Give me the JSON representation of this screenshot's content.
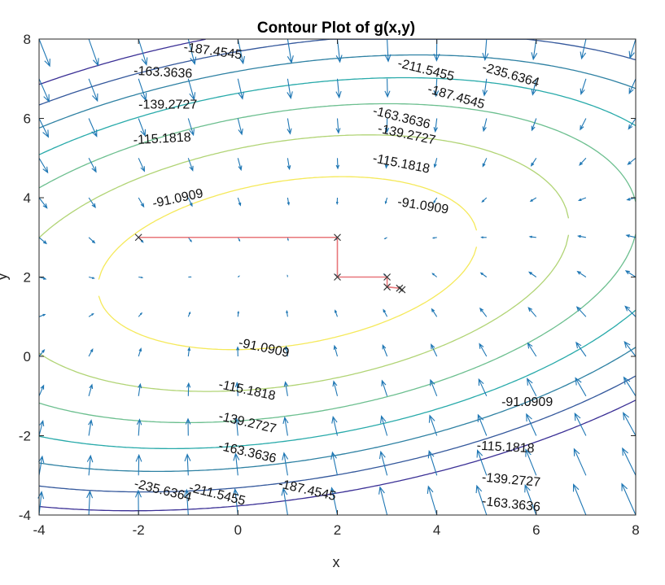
{
  "chart_data": {
    "type": "contour",
    "title": "Contour Plot of g(x,y)",
    "xlabel": "x",
    "ylabel": "y",
    "xlim": [
      -4,
      8
    ],
    "ylim": [
      -4,
      8
    ],
    "x_ticks": [
      "-4",
      "-2",
      "0",
      "2",
      "4",
      "6",
      "8"
    ],
    "y_ticks": [
      "-4",
      "-2",
      "0",
      "2",
      "4",
      "6",
      "8"
    ],
    "contour_levels": [
      "-91.0909",
      "-115.1818",
      "-139.2727",
      "-163.3636",
      "-187.4545",
      "-211.5455",
      "-235.6364"
    ],
    "contour_labels": [
      {
        "text": "-187.4545",
        "x": -1.1,
        "y": 7.7,
        "angle": 8
      },
      {
        "text": "-163.3636",
        "x": -2.1,
        "y": 7.1,
        "angle": 3
      },
      {
        "text": "-139.2727",
        "x": -2.0,
        "y": 6.25,
        "angle": 0
      },
      {
        "text": "-115.1818",
        "x": -2.1,
        "y": 5.35,
        "angle": -3
      },
      {
        "text": "-91.0909",
        "x": -1.7,
        "y": 3.75,
        "angle": -12
      },
      {
        "text": "-211.5455",
        "x": 3.2,
        "y": 7.3,
        "angle": 14
      },
      {
        "text": "-235.6364",
        "x": 4.9,
        "y": 7.2,
        "angle": 16
      },
      {
        "text": "-187.4545",
        "x": 3.8,
        "y": 6.65,
        "angle": 16
      },
      {
        "text": "-163.3636",
        "x": 2.7,
        "y": 6.1,
        "angle": 14
      },
      {
        "text": "-139.2727",
        "x": 2.8,
        "y": 5.65,
        "angle": 12
      },
      {
        "text": "-115.1818",
        "x": 2.7,
        "y": 4.9,
        "angle": 11
      },
      {
        "text": "-91.0909",
        "x": 3.2,
        "y": 3.8,
        "angle": 9
      },
      {
        "text": "-91.0909",
        "x": 0.0,
        "y": 0.25,
        "angle": 12
      },
      {
        "text": "-115.1818",
        "x": -0.4,
        "y": -0.8,
        "angle": 12
      },
      {
        "text": "-139.2727",
        "x": -0.4,
        "y": -1.6,
        "angle": 13
      },
      {
        "text": "-163.3636",
        "x": -0.4,
        "y": -2.35,
        "angle": 13
      },
      {
        "text": "-187.4545",
        "x": 0.8,
        "y": -3.3,
        "angle": 13
      },
      {
        "text": "-211.5455",
        "x": -1.0,
        "y": -3.4,
        "angle": 14
      },
      {
        "text": "-235.6364",
        "x": -2.1,
        "y": -3.3,
        "angle": 14
      },
      {
        "text": "-91.0909",
        "x": 5.3,
        "y": -1.25,
        "angle": 0
      },
      {
        "text": "-115.1818",
        "x": 4.8,
        "y": -2.35,
        "angle": 3
      },
      {
        "text": "-139.2727",
        "x": 4.9,
        "y": -3.15,
        "angle": 5
      },
      {
        "text": "-163.3636",
        "x": 4.9,
        "y": -3.75,
        "angle": 6
      }
    ],
    "path": {
      "points": [
        [
          -2,
          3
        ],
        [
          2,
          3
        ],
        [
          2,
          2
        ],
        [
          3,
          2
        ],
        [
          3,
          1.75
        ],
        [
          3.25,
          1.72
        ],
        [
          3.3,
          1.68
        ]
      ],
      "color": "#e8767a"
    },
    "colors": {
      "contour_low": "#3a2f95",
      "contour_high": "#f5e95a",
      "arrow": "#1f77b4",
      "marker": "#333333"
    }
  }
}
